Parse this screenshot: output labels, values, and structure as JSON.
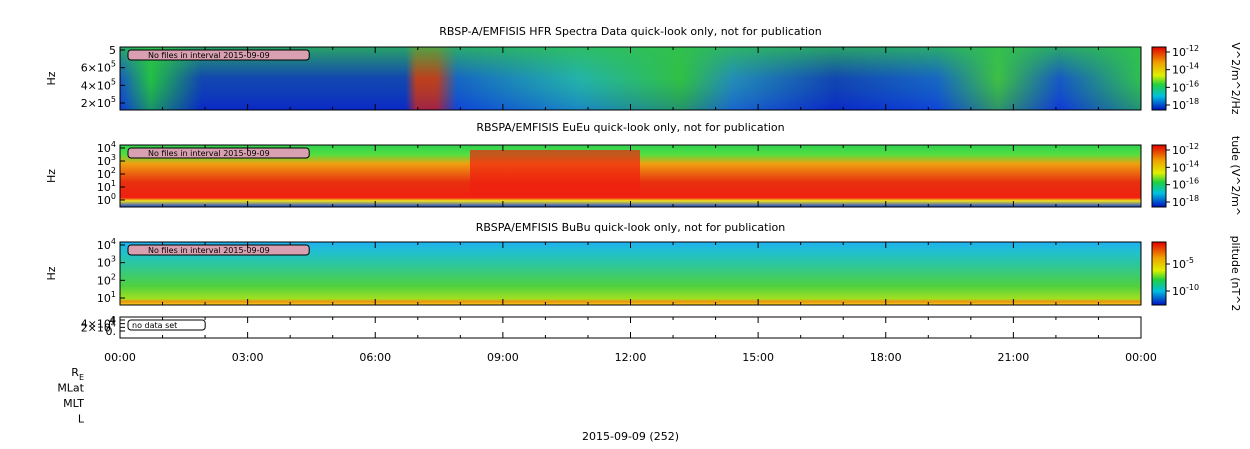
{
  "panels": [
    {
      "title": "RBSP-A/EMFISIS  HFR Spectra Data quick-look only, not for publication",
      "ylabel": "Hz",
      "note": "No files in interval 2015-09-09",
      "yticks": [
        {
          "base": "5",
          "exp": ""
        },
        {
          "base": "6×10",
          "exp": "5"
        },
        {
          "base": "4×10",
          "exp": "5"
        },
        {
          "base": "2×10",
          "exp": "5"
        }
      ],
      "cbar_label": "V^2/m^2/Hz",
      "cbar_ticks": [
        {
          "base": "10",
          "exp": "-12"
        },
        {
          "base": "10",
          "exp": "-14"
        },
        {
          "base": "10",
          "exp": "-16"
        },
        {
          "base": "10",
          "exp": "-18"
        }
      ]
    },
    {
      "title": "RBSPA/EMFISIS  EuEu quick-look only, not for publication",
      "ylabel": "Hz",
      "note": "No files in interval 2015-09-09",
      "yticks": [
        {
          "base": "10",
          "exp": "4"
        },
        {
          "base": "10",
          "exp": "3"
        },
        {
          "base": "10",
          "exp": "2"
        },
        {
          "base": "10",
          "exp": "1"
        },
        {
          "base": "10",
          "exp": "0"
        }
      ],
      "cbar_label": "tude (V^2/m^",
      "cbar_ticks": [
        {
          "base": "10",
          "exp": "-12"
        },
        {
          "base": "10",
          "exp": "-14"
        },
        {
          "base": "10",
          "exp": "-16"
        },
        {
          "base": "10",
          "exp": "-18"
        }
      ]
    },
    {
      "title": "RBSPA/EMFISIS  BuBu quick-look only, not for publication",
      "ylabel": "Hz",
      "note": "No files in interval 2015-09-09",
      "yticks": [
        {
          "base": "10",
          "exp": "4"
        },
        {
          "base": "10",
          "exp": "3"
        },
        {
          "base": "10",
          "exp": "2"
        },
        {
          "base": "10",
          "exp": "1"
        }
      ],
      "cbar_label": "plitude (nT^2",
      "cbar_ticks": [
        {
          "base": "10",
          "exp": "-5"
        },
        {
          "base": "10",
          "exp": "-10"
        }
      ]
    },
    {
      "note": "no data set",
      "yticks": [
        {
          "base": "4",
          "exp": ""
        },
        {
          "base": "4×10",
          "exp": "4"
        },
        {
          "base": "2×10",
          "exp": "4"
        },
        {
          "base": "0.",
          "exp": ""
        }
      ]
    }
  ],
  "xticks": [
    "00:00",
    "03:00",
    "06:00",
    "09:00",
    "12:00",
    "15:00",
    "18:00",
    "21:00",
    "00:00"
  ],
  "ephem_labels": [
    {
      "base": "R",
      "sub": "E"
    },
    {
      "base": "MLat",
      "sub": ""
    },
    {
      "base": "MLT",
      "sub": ""
    },
    {
      "base": "L",
      "sub": ""
    }
  ],
  "xlabel": "2015-09-09 (252)"
}
